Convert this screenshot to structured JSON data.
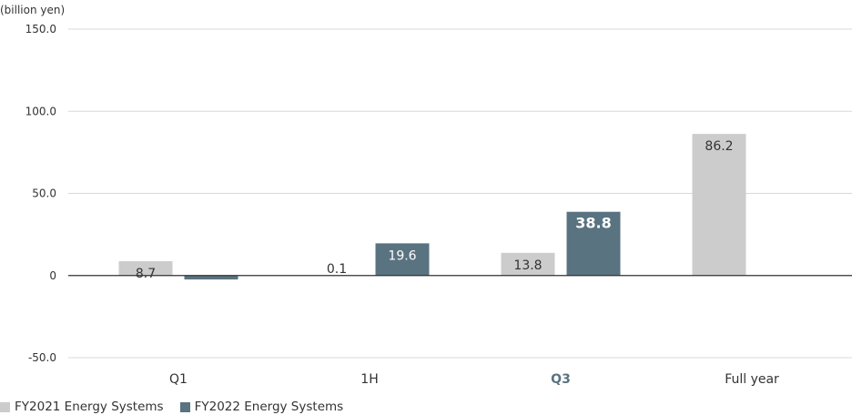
{
  "chart_data": {
    "type": "bar",
    "unit_label": "(billion yen)",
    "categories": [
      "Q1",
      "1H",
      "Q3",
      "Full year"
    ],
    "highlight_category": "Q3",
    "series": [
      {
        "name": "FY2021 Energy Systems",
        "color": "#cccccc",
        "values": [
          8.7,
          0.1,
          13.8,
          86.2
        ],
        "labels": [
          "8.7",
          "0.1",
          "13.8",
          "86.2"
        ]
      },
      {
        "name": "FY2022 Energy Systems",
        "color": "#5a7380",
        "values": [
          -2.4,
          19.6,
          38.8,
          0
        ],
        "labels": [
          "-2.4",
          "19.6",
          "38.8",
          ""
        ]
      }
    ],
    "ylim": [
      -50,
      150
    ],
    "yticks": [
      {
        "value": 150,
        "label": "150.0"
      },
      {
        "value": 100,
        "label": "100.0"
      },
      {
        "value": 50,
        "label": "50.0"
      },
      {
        "value": 0,
        "label": "0"
      },
      {
        "value": -50,
        "label": "-50.0"
      }
    ],
    "grid": true,
    "legend_position": "bottom-left",
    "colors": {
      "grid": "#d9d9d9",
      "axis": "#333333",
      "text": "#333333",
      "highlight_text": "#5a7380"
    }
  }
}
